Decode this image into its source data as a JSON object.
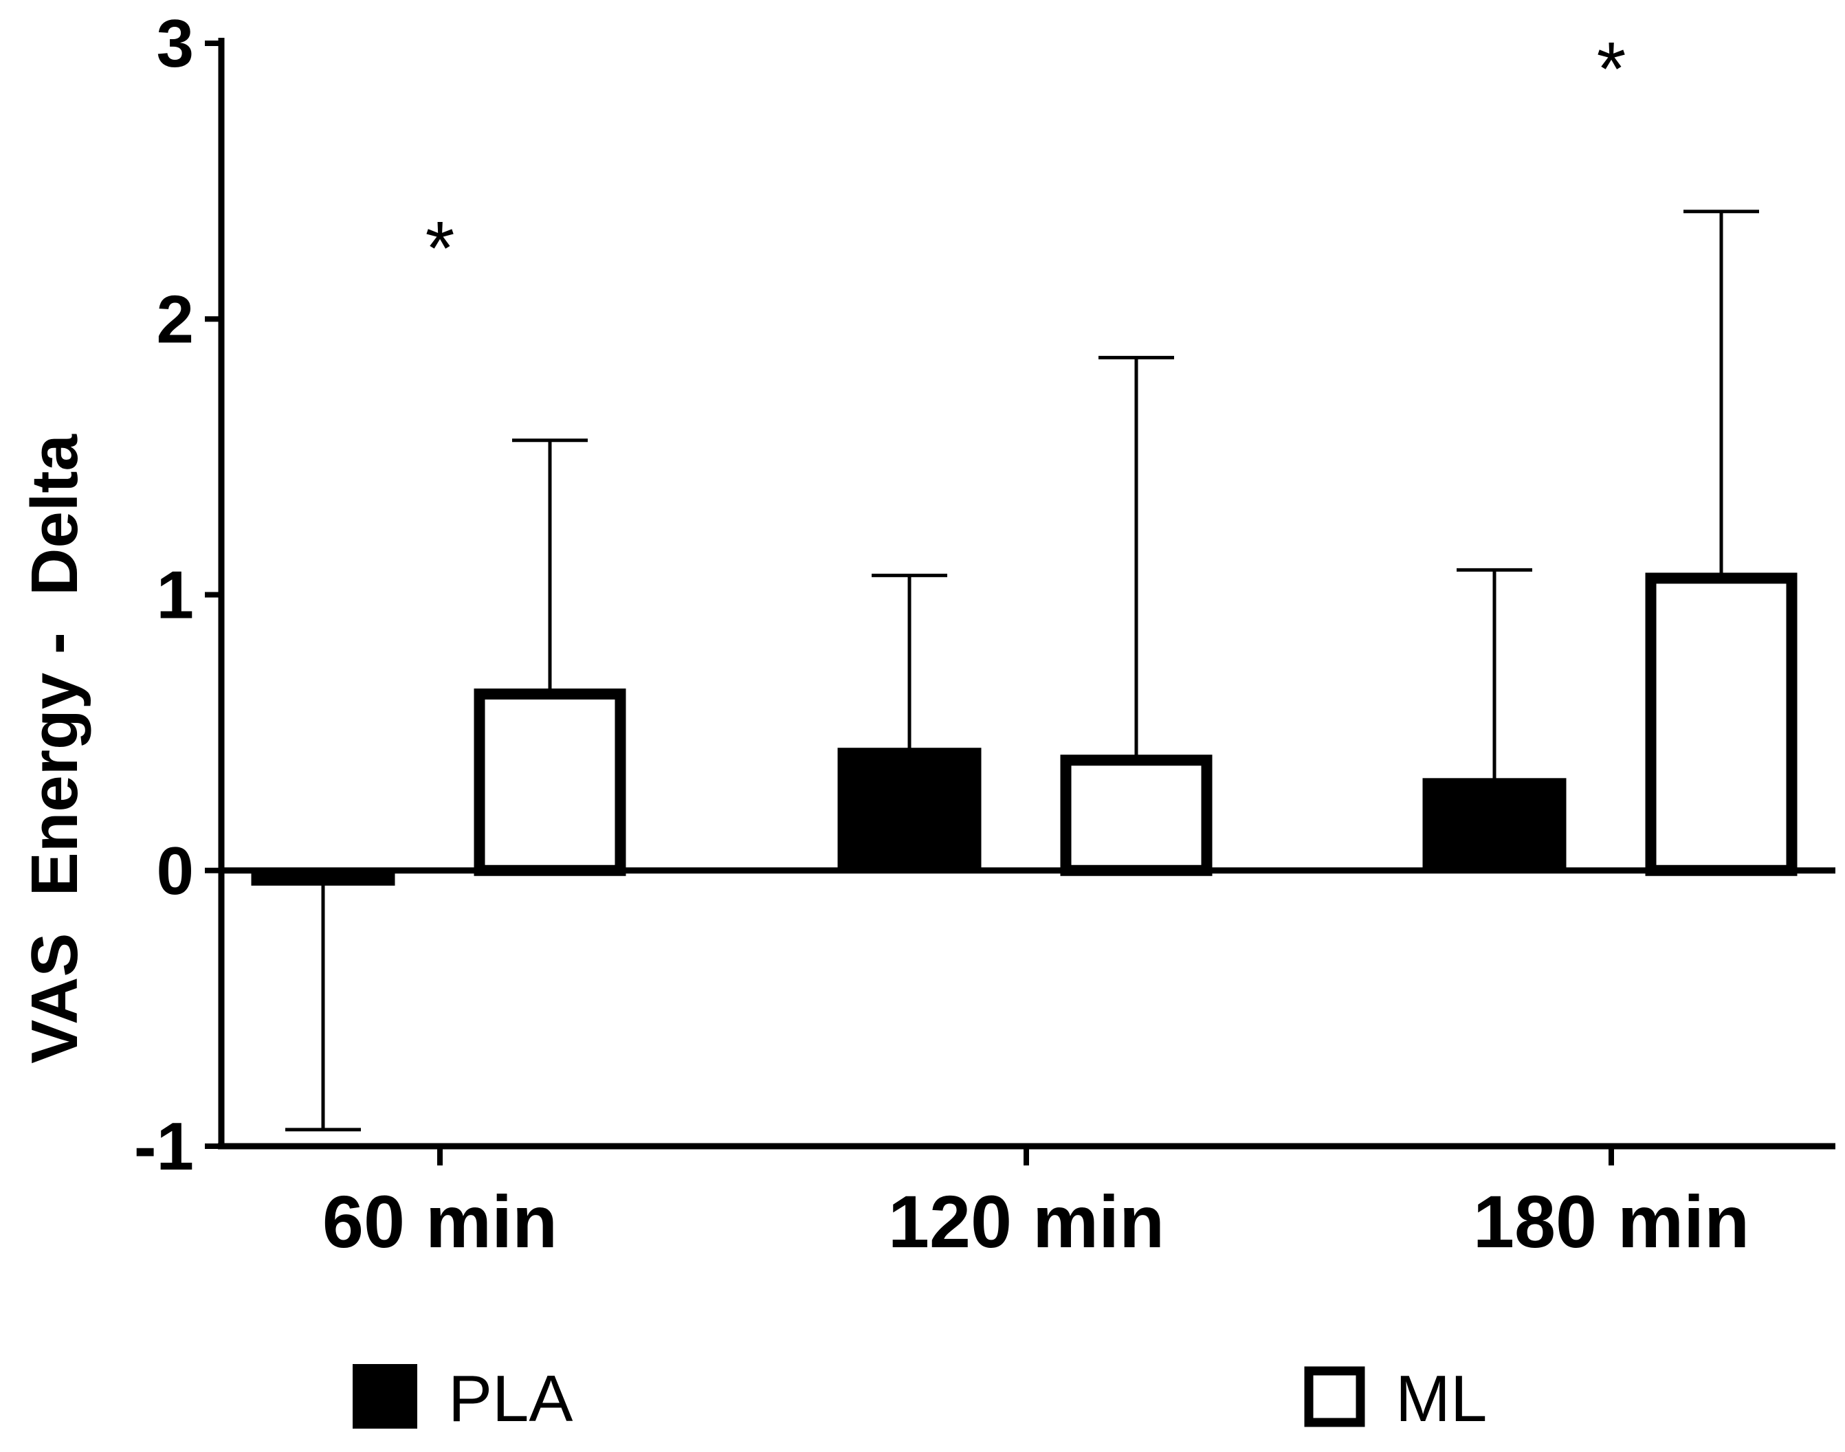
{
  "chart_data": {
    "type": "bar",
    "title": "",
    "xlabel": "",
    "ylabel": "VAS  Energy -  Delta",
    "ylim": [
      -1,
      3
    ],
    "yticks": [
      -1,
      0,
      1,
      2,
      3
    ],
    "ytick_labels": [
      "-1",
      "0",
      "1",
      "2",
      "3"
    ],
    "categories": [
      "60 min",
      "120 min",
      "180 min"
    ],
    "series": [
      {
        "name": "PLA",
        "fill": "#000000",
        "values": [
          -0.05,
          0.44,
          0.33
        ],
        "error_upper": [
          -0.94,
          1.07,
          1.09
        ]
      },
      {
        "name": "ML",
        "fill": "#ffffff",
        "values": [
          0.64,
          0.4,
          1.06
        ],
        "error_upper": [
          1.56,
          1.86,
          2.39
        ]
      }
    ],
    "annotations": [
      {
        "text": "*",
        "category": "60 min",
        "y": 2.3
      },
      {
        "text": "*",
        "category": "180 min",
        "y": 2.95
      }
    ],
    "legend": {
      "position": "bottom",
      "entries": [
        "PLA",
        "ML"
      ]
    },
    "grid": false
  }
}
